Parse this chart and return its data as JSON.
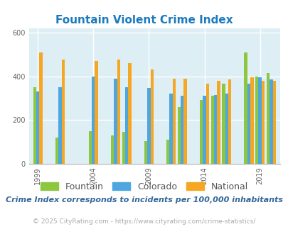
{
  "title": "Fountain Violent Crime Index",
  "subtitle": "Crime Index corresponds to incidents per 100,000 inhabitants",
  "footer": "© 2025 CityRating.com - https://www.cityrating.com/crime-statistics/",
  "years": [
    1999,
    2001,
    2004,
    2006,
    2007,
    2009,
    2011,
    2012,
    2014,
    2015,
    2016,
    2018,
    2019,
    2020
  ],
  "fountain": [
    350,
    120,
    150,
    130,
    145,
    105,
    110,
    260,
    290,
    310,
    365,
    510,
    400,
    415
  ],
  "colorado": [
    330,
    350,
    400,
    390,
    350,
    345,
    320,
    310,
    310,
    315,
    320,
    365,
    395,
    385
  ],
  "national": [
    510,
    475,
    470,
    475,
    460,
    430,
    390,
    390,
    365,
    380,
    385,
    395,
    380,
    380
  ],
  "fountain_color": "#8dc63f",
  "colorado_color": "#4da6e0",
  "national_color": "#f5a623",
  "bg_color": "#ddeef5",
  "title_color": "#1a7abf",
  "subtitle_color": "#336699",
  "footer_color": "#aaaaaa",
  "grid_color": "#ffffff",
  "ylim": [
    0,
    620
  ],
  "yticks": [
    0,
    200,
    400,
    600
  ],
  "xtick_years": [
    1999,
    2004,
    2009,
    2014,
    2019
  ],
  "bar_width": 0.28
}
